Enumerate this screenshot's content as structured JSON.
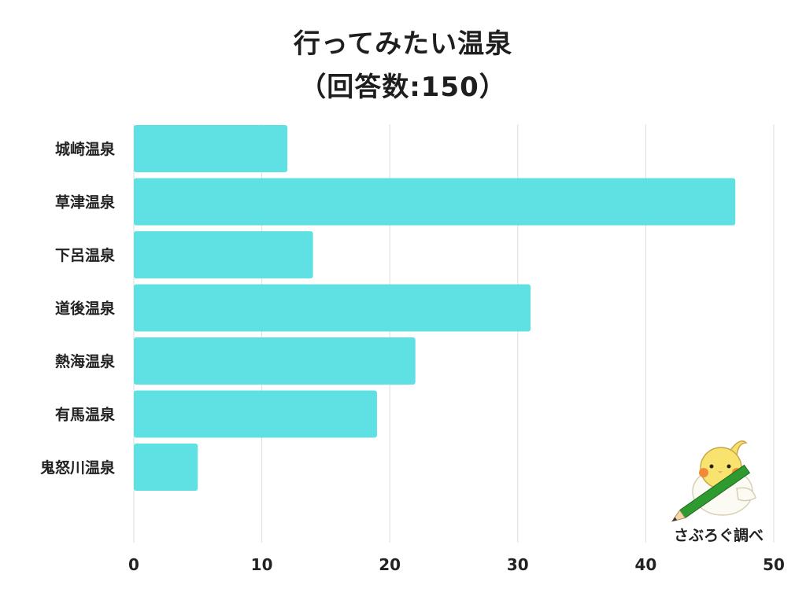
{
  "title": "行ってみたい温泉",
  "subtitle": "（回答数:150）",
  "credit": "さぶろぐ調べ",
  "colors": {
    "bar": "#5fe0e3",
    "grid": "#dddddd"
  },
  "chart_data": {
    "type": "bar",
    "orientation": "horizontal",
    "title": "行ってみたい温泉",
    "subtitle": "（回答数:150）",
    "categories": [
      "城崎温泉",
      "草津温泉",
      "下呂温泉",
      "道後温泉",
      "熱海温泉",
      "有馬温泉",
      "鬼怒川温泉"
    ],
    "values": [
      12,
      47,
      14,
      31,
      22,
      19,
      5
    ],
    "xlim": [
      0,
      50
    ],
    "xticks": [
      0,
      10,
      20,
      30,
      40,
      50
    ],
    "grid": true
  }
}
